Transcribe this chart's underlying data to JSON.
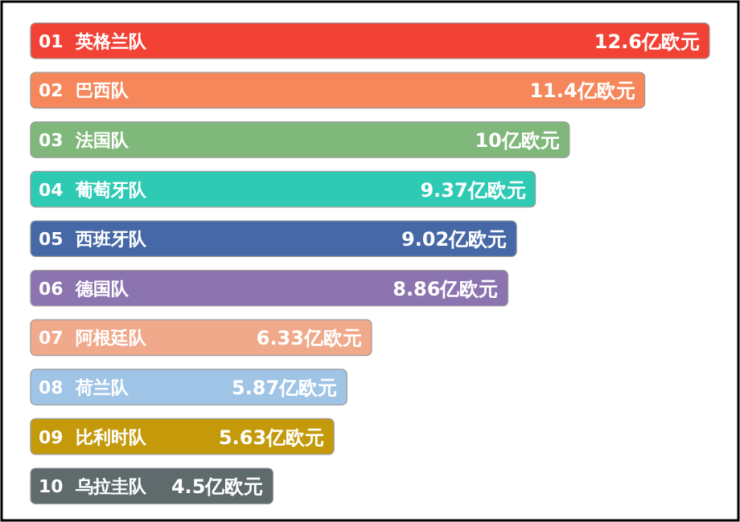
{
  "chart_data": {
    "type": "bar",
    "orientation": "horizontal",
    "categories": [
      "01  英格兰队",
      "02  巴西队",
      "03  法国队",
      "04  葡萄牙队",
      "05  西班牙队",
      "06  德国队",
      "07  阿根廷队",
      "08  荷兰队",
      "09  比利时队",
      "10  乌拉圭队"
    ],
    "values": [
      12.6,
      11.4,
      10,
      9.37,
      9.02,
      8.86,
      6.33,
      5.87,
      5.63,
      4.5
    ],
    "value_labels": [
      "12.6亿欧元",
      "11.4亿欧元",
      "10亿欧元",
      "9.37亿欧元",
      "9.02亿欧元",
      "8.86亿欧元",
      "6.33亿欧元",
      "5.87亿欧元",
      "5.63亿欧元",
      "4.5亿欧元"
    ],
    "colors": [
      "#f24236",
      "#f5875a",
      "#7fb87a",
      "#2ecab4",
      "#4668a6",
      "#8c74b0",
      "#f0a98a",
      "#9fc4e6",
      "#c49a0a",
      "#5f6a6c"
    ],
    "data_labels": false
  }
}
